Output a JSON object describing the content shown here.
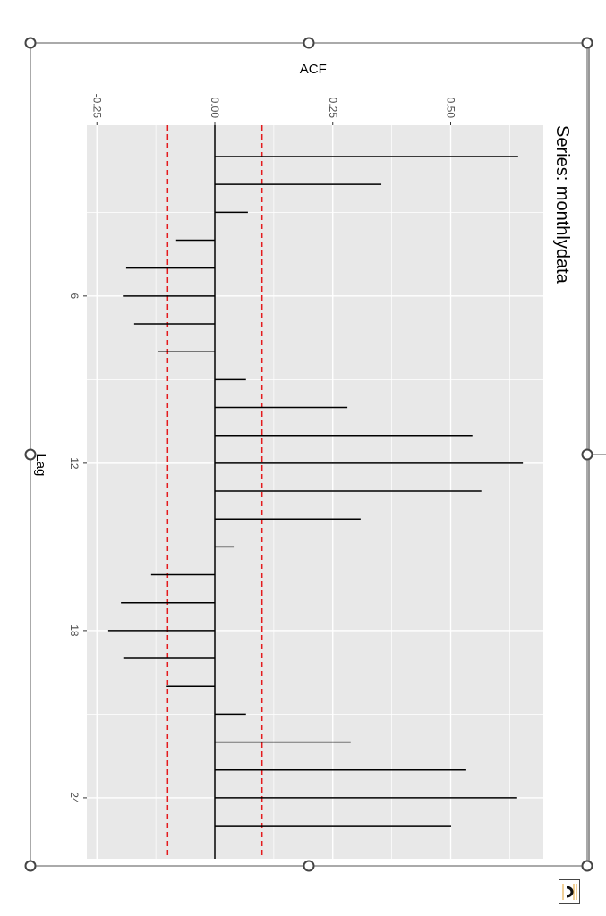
{
  "chart_data": {
    "type": "bar",
    "orientation": "rotated-90-clockwise",
    "title": "Series: monthlydata",
    "xlabel": "Lag",
    "ylabel": "ACF",
    "x": [
      1,
      2,
      3,
      4,
      5,
      6,
      7,
      8,
      9,
      10,
      11,
      12,
      13,
      14,
      15,
      16,
      17,
      18,
      19,
      20,
      21,
      22,
      23,
      24,
      25
    ],
    "values": [
      0.643,
      0.353,
      0.07,
      -0.082,
      -0.188,
      -0.195,
      -0.171,
      -0.121,
      0.066,
      0.281,
      0.546,
      0.653,
      0.565,
      0.309,
      0.04,
      -0.135,
      -0.199,
      -0.226,
      -0.194,
      -0.102,
      0.066,
      0.288,
      0.533,
      0.641,
      0.501
    ],
    "confidence_bounds": [
      -0.1,
      0.1
    ],
    "confidence_color": "#e41a1c",
    "x_ticks": [
      "6",
      "12",
      "18",
      "24"
    ],
    "y_ticks": [
      "-0.25",
      "0.00",
      "0.25",
      "0.50"
    ],
    "xlim": [
      0.5,
      26
    ],
    "ylim": [
      -0.25,
      0.7
    ],
    "grid": true,
    "panel_color": "#e8e8e8"
  },
  "layout_options_icon": "layout-options-icon"
}
